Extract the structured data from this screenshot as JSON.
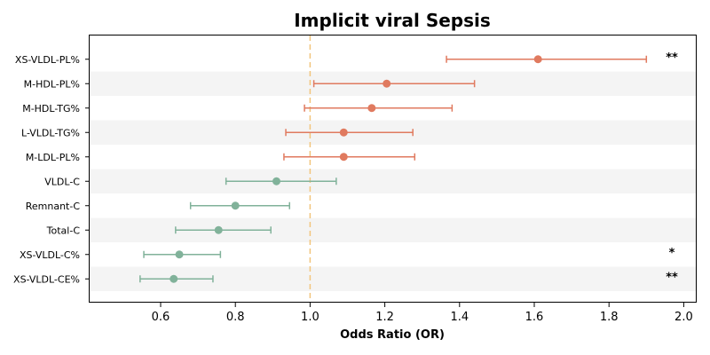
{
  "chart_data": {
    "type": "forest",
    "title": "Implicit viral Sepsis",
    "xlabel": "Odds Ratio (OR)",
    "ylabel": "",
    "xlim": [
      0.42,
      2.03
    ],
    "xticks": [
      0.6,
      0.8,
      1.0,
      1.2,
      1.4,
      1.6,
      1.8,
      2.0
    ],
    "xtick_labels": [
      "0.6",
      "0.8",
      "1.0",
      "1.2",
      "1.4",
      "1.6",
      "1.8",
      "2.0"
    ],
    "reference_line": 1.0,
    "grid": false,
    "row_striping": true,
    "colors": {
      "positive": "#e07a5f",
      "negative": "#81b29a",
      "reference": "#f2c57c",
      "stripe": "#f4f4f4"
    },
    "rows": [
      {
        "label": "XS-VLDL-PL%",
        "or": 1.61,
        "lower": 1.365,
        "upper": 1.9,
        "significance": "**"
      },
      {
        "label": "M-HDL-PL%",
        "or": 1.205,
        "lower": 1.01,
        "upper": 1.44,
        "significance": ""
      },
      {
        "label": "M-HDL-TG%",
        "or": 1.165,
        "lower": 0.985,
        "upper": 1.38,
        "significance": ""
      },
      {
        "label": "L-VLDL-TG%",
        "or": 1.09,
        "lower": 0.935,
        "upper": 1.275,
        "significance": ""
      },
      {
        "label": "M-LDL-PL%",
        "or": 1.09,
        "lower": 0.93,
        "upper": 1.28,
        "significance": ""
      },
      {
        "label": "VLDL-C",
        "or": 0.91,
        "lower": 0.775,
        "upper": 1.07,
        "significance": ""
      },
      {
        "label": "Remnant-C",
        "or": 0.8,
        "lower": 0.68,
        "upper": 0.945,
        "significance": ""
      },
      {
        "label": "Total-C",
        "or": 0.755,
        "lower": 0.64,
        "upper": 0.895,
        "significance": ""
      },
      {
        "label": "XS-VLDL-C%",
        "or": 0.65,
        "lower": 0.555,
        "upper": 0.76,
        "significance": "*"
      },
      {
        "label": "XS-VLDL-CE%",
        "or": 0.635,
        "lower": 0.545,
        "upper": 0.74,
        "significance": "**"
      }
    ]
  }
}
